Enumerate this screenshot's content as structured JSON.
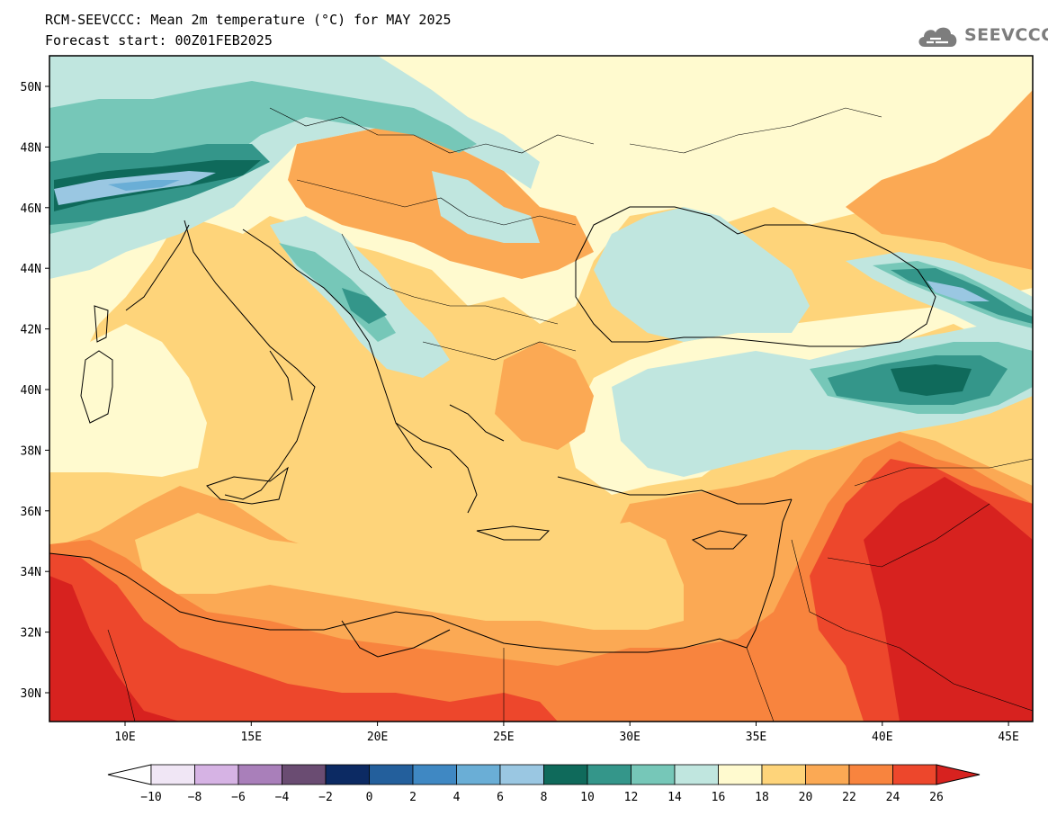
{
  "header": {
    "title": "RCM-SEEVCCC: Mean 2m temperature (°C) for MAY 2025",
    "subtitle": "Forecast start: 00Z01FEB2025"
  },
  "logo": {
    "icon": "cloud-icon",
    "text": "SEEVCCC"
  },
  "map": {
    "lat_labels": [
      "50N",
      "48N",
      "46N",
      "44N",
      "42N",
      "40N",
      "38N",
      "36N",
      "34N",
      "32N",
      "30N"
    ],
    "lon_labels": [
      "10E",
      "15E",
      "20E",
      "25E",
      "30E",
      "35E",
      "40E",
      "45E"
    ]
  },
  "colorbar": {
    "tick_labels": [
      "−10",
      "−8",
      "−6",
      "−4",
      "−2",
      "0",
      "2",
      "4",
      "6",
      "8",
      "10",
      "12",
      "14",
      "16",
      "18",
      "20",
      "22",
      "24",
      "26"
    ],
    "colors": [
      "#f0e6f5",
      "#d6b3e4",
      "#a97fba",
      "#6a4c72",
      "#0c2a63",
      "#235f9c",
      "#3f88c3",
      "#6aaed6",
      "#9ac7e2",
      "#0f6a5b",
      "#34968a",
      "#76c7b8",
      "#c0e6df",
      "#fffacf",
      "#fed47a",
      "#fba954",
      "#f8843e",
      "#ed472c"
    ],
    "under_color": "#ffffff",
    "over_color": "#d7221f"
  }
}
